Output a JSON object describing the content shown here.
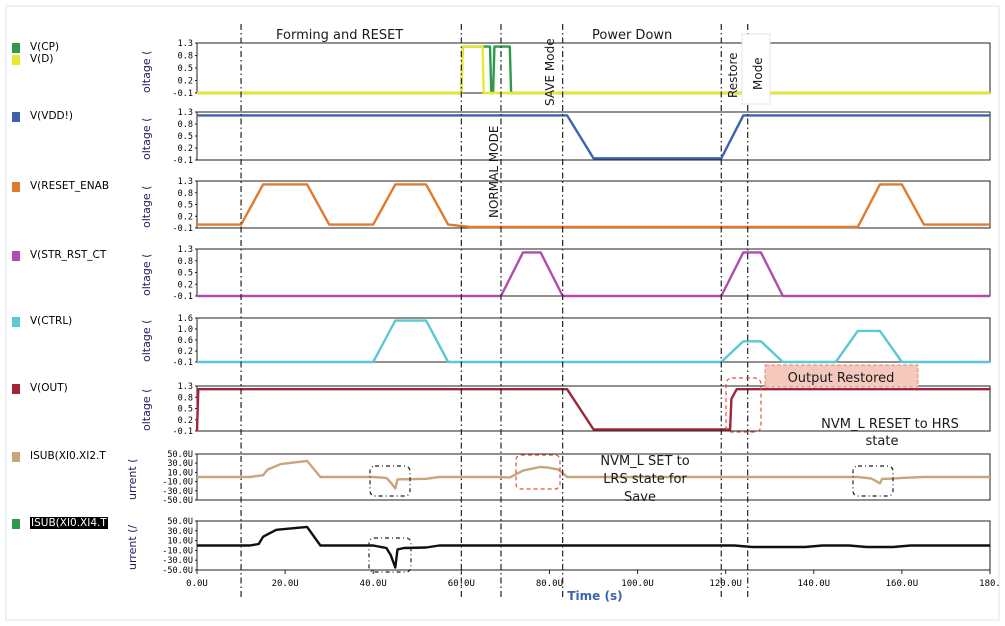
{
  "chart_data": {
    "type": "line",
    "xlabel": "Time (s)",
    "x_ticks": [
      "0.0U",
      "20.0U",
      "40.0U",
      "60.0U",
      "80.0U",
      "100.0U",
      "120.0U",
      "140.0U",
      "160.0U",
      "180."
    ],
    "x_range": [
      0,
      180
    ],
    "grid": false,
    "panels": [
      {
        "id": "cp_d",
        "ylabel": "oltage (",
        "yticks": [
          "1.3",
          "0.8",
          "0.5",
          "0.2",
          "-0.1"
        ],
        "ylim": [
          -0.1,
          1.3
        ],
        "series": [
          {
            "name": "V(CP)",
            "color": "#2e9a4b",
            "x": [
              0,
              60,
              60.3,
              66.5,
              66.8,
              67.2,
              67.5,
              71,
              71.3,
              180
            ],
            "y": [
              -0.1,
              -0.1,
              1.2,
              1.2,
              -0.1,
              -0.1,
              1.2,
              1.2,
              -0.1,
              -0.1
            ]
          },
          {
            "name": "V(D)",
            "color": "#e8e82c",
            "x": [
              0,
              60,
              60.3,
              64.8,
              65.1,
              180
            ],
            "y": [
              -0.1,
              -0.1,
              1.2,
              1.2,
              -0.1,
              -0.1
            ]
          }
        ]
      },
      {
        "id": "vdd",
        "ylabel": "oltage (",
        "yticks": [
          "1.3",
          "0.8",
          "0.5",
          "0.2",
          "-0.1"
        ],
        "ylim": [
          -0.1,
          1.3
        ],
        "series": [
          {
            "name": "V(VDD!)",
            "color": "#3a63b0",
            "x": [
              0,
              84,
              90,
              119,
              124,
              180
            ],
            "y": [
              1.2,
              1.2,
              -0.05,
              -0.05,
              1.2,
              1.2
            ]
          }
        ]
      },
      {
        "id": "reset_en",
        "ylabel": "oltage (",
        "yticks": [
          "1.3",
          "0.8",
          "0.5",
          "0.2",
          "-0.1"
        ],
        "ylim": [
          -0.1,
          1.3
        ],
        "series": [
          {
            "name": "V(RESET_ENAB",
            "color": "#e07a2e",
            "x": [
              0,
              10,
              15,
              25,
              30,
              40,
              45,
              52,
              57,
              62,
              150,
              155,
              160,
              165,
              180
            ],
            "y": [
              0,
              0,
              1.2,
              1.2,
              0,
              0,
              1.2,
              1.2,
              0,
              -0.07,
              -0.07,
              1.2,
              1.2,
              0,
              0
            ]
          }
        ]
      },
      {
        "id": "str_rst",
        "ylabel": "oltage (",
        "yticks": [
          "1.3",
          "0.8",
          "0.5",
          "0.2",
          "-0.1"
        ],
        "ylim": [
          -0.1,
          1.3
        ],
        "series": [
          {
            "name": "V(STR_RST_CT",
            "color": "#b04cae",
            "x": [
              0,
              69,
              74,
              78,
              83,
              119,
              124,
              128,
              133,
              180
            ],
            "y": [
              -0.1,
              -0.1,
              1.2,
              1.2,
              -0.1,
              -0.1,
              1.2,
              1.2,
              -0.1,
              -0.1
            ]
          }
        ]
      },
      {
        "id": "ctrl",
        "ylabel": "oltage (",
        "yticks": [
          "1.6",
          "1.0",
          "0.6",
          "0.2",
          "-0.1"
        ],
        "ylim": [
          -0.1,
          1.6
        ],
        "series": [
          {
            "name": "V(CTRL)",
            "color": "#5bc8d4",
            "x": [
              0,
              40,
              45,
              52,
              57,
              119,
              124,
              128,
              133,
              145,
              150,
              155,
              160,
              180
            ],
            "y": [
              -0.1,
              -0.1,
              1.5,
              1.5,
              -0.1,
              -0.1,
              0.7,
              0.7,
              -0.1,
              -0.1,
              1.1,
              1.1,
              -0.1,
              -0.1
            ]
          }
        ]
      },
      {
        "id": "out",
        "ylabel": "oltage (",
        "yticks": [
          "1.3",
          "0.8",
          "0.5",
          "0.2",
          "-0.1"
        ],
        "ylim": [
          -0.1,
          1.3
        ],
        "series": [
          {
            "name": "V(OUT)",
            "color": "#a0243a",
            "x": [
              0,
              0.3,
              84,
              90,
              119,
              121,
              121.3,
              122.5,
              180
            ],
            "y": [
              -0.1,
              1.2,
              1.2,
              -0.05,
              -0.05,
              -0.05,
              0.9,
              1.2,
              1.2
            ]
          }
        ]
      },
      {
        "id": "isub_xi2",
        "ylabel": "urrent (",
        "yticks": [
          "50.0U",
          "30.0U",
          "10.0U",
          "-10.0U",
          "-30.0U",
          "-50.0U"
        ],
        "ylim": [
          -50,
          50
        ],
        "series": [
          {
            "name": "ISUB(XI0.XI2.T",
            "color": "#c9a57c",
            "x": [
              0,
              12,
              15,
              16,
              19,
              25,
              28,
              40,
              43,
              44,
              45,
              45.5,
              47,
              52,
              55,
              68,
              71,
              74,
              77,
              78,
              80,
              82,
              84,
              119,
              122,
              126,
              150,
              153,
              154,
              155,
              155.5,
              157,
              160,
              165,
              180
            ],
            "y": [
              0,
              0,
              4,
              16,
              28,
              35,
              0,
              0,
              -2,
              -12,
              -25,
              -5,
              -5,
              -4,
              0,
              0,
              -1,
              14,
              20,
              22,
              20,
              16,
              0,
              0,
              0,
              0,
              0,
              -3,
              -8,
              -14,
              -4,
              -4,
              -2,
              0,
              0
            ]
          }
        ]
      },
      {
        "id": "isub_xi4",
        "ylabel": "urrent (/",
        "yticks": [
          "50.0U",
          "30.0U",
          "10.0U",
          "-10.0U",
          "-30.0U",
          "-50.0U"
        ],
        "ylim": [
          -50,
          50
        ],
        "series": [
          {
            "name": "ISUB(XI0.XI4.T",
            "color": "#101010",
            "x": [
              0,
              12,
              14,
              15,
              18,
              25,
              28,
              40,
              43,
              44,
              45,
              45.5,
              47,
              52,
              55,
              119,
              122,
              126,
              138,
              142,
              148,
              152,
              158,
              162,
              180
            ],
            "y": [
              0,
              0,
              3,
              18,
              32,
              38,
              0,
              0,
              -5,
              -20,
              -45,
              -8,
              -5,
              -4,
              0,
              0,
              0,
              -3,
              -3,
              0,
              0,
              -3,
              -3,
              0,
              0
            ]
          }
        ]
      }
    ],
    "phase_markers_x": [
      10,
      60,
      69,
      83,
      119,
      125
    ],
    "annotations": {
      "forming": "Forming and RESET",
      "normal": "NORMAL MODE",
      "save": "SAVE Mode",
      "power_down": "Power Down",
      "restore": "Restore",
      "restore_mode": "Mode",
      "output_restored": "Output Restored",
      "nvm_reset_1": "NVM_L RESET to HRS",
      "nvm_reset_2": "state",
      "nvm_set_1": "NVM_L SET to",
      "nvm_set_2": "LRS state for",
      "nvm_set_3": "Save"
    }
  }
}
